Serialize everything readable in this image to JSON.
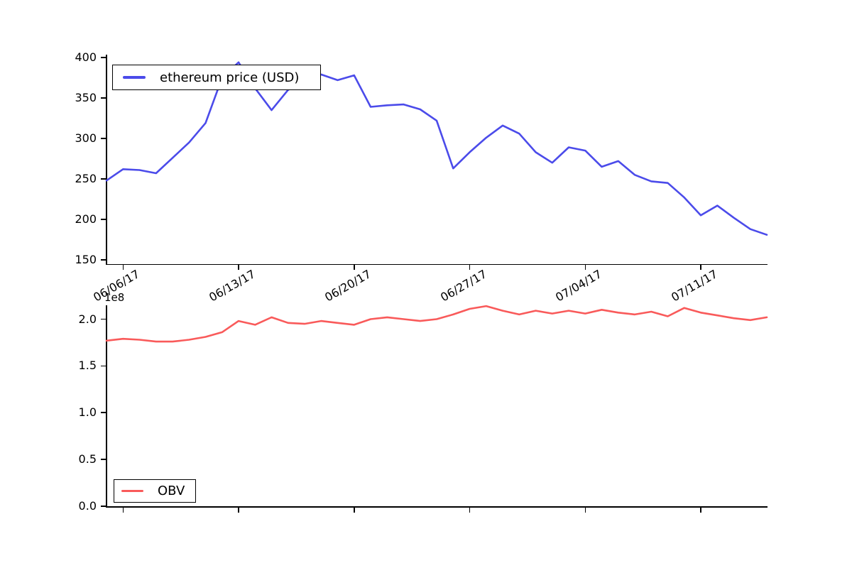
{
  "chart_data": [
    {
      "type": "line",
      "name": "ethereum price (USD)",
      "color": "#4b4bea",
      "legend_position": "upper left",
      "grid": false,
      "ylabel": "",
      "ylim": [
        150,
        400
      ],
      "yticks": [
        400,
        350,
        300,
        250,
        200,
        150
      ],
      "ytick_labels": [
        "400",
        "350",
        "300",
        "250",
        "200",
        "150"
      ],
      "xtick_labels": [
        "06/06/17",
        "06/13/17",
        "06/20/17",
        "06/27/17",
        "07/04/17",
        "07/11/17"
      ],
      "xtick_indices": [
        1,
        8,
        15,
        22,
        29,
        36
      ],
      "x": [
        "06/05/17",
        "06/06/17",
        "06/07/17",
        "06/08/17",
        "06/09/17",
        "06/10/17",
        "06/11/17",
        "06/12/17",
        "06/13/17",
        "06/14/17",
        "06/15/17",
        "06/16/17",
        "06/17/17",
        "06/18/17",
        "06/19/17",
        "06/20/17",
        "06/21/17",
        "06/22/17",
        "06/23/17",
        "06/24/17",
        "06/25/17",
        "06/26/17",
        "06/27/17",
        "06/28/17",
        "06/29/17",
        "06/30/17",
        "07/01/17",
        "07/02/17",
        "07/03/17",
        "07/04/17",
        "07/05/17",
        "07/06/17",
        "07/07/17",
        "07/08/17",
        "07/09/17",
        "07/10/17",
        "07/11/17",
        "07/12/17",
        "07/13/17",
        "07/14/17",
        "07/15/17"
      ],
      "values": [
        248,
        262,
        261,
        257,
        276,
        295,
        319,
        375,
        394,
        362,
        335,
        360,
        370,
        379,
        372,
        378,
        339,
        341,
        342,
        336,
        322,
        263,
        283,
        301,
        316,
        306,
        283,
        270,
        289,
        285,
        265,
        272,
        255,
        247,
        245,
        227,
        205,
        217,
        202,
        188,
        181
      ]
    },
    {
      "type": "line",
      "name": "OBV",
      "color": "#f95a5a",
      "legend_position": "lower left",
      "grid": false,
      "ylabel": "",
      "offset_text": "1e8",
      "value_scale": "1e8",
      "ylim": [
        0.0,
        2.15
      ],
      "yticks": [
        2.0,
        1.5,
        1.0,
        0.5,
        0.0
      ],
      "ytick_labels": [
        "2.0",
        "1.5",
        "1.0",
        "0.5",
        "0.0"
      ],
      "xtick_labels": [],
      "xtick_indices": [
        1,
        8,
        15,
        22,
        29,
        36
      ],
      "x": [
        "06/05/17",
        "06/06/17",
        "06/07/17",
        "06/08/17",
        "06/09/17",
        "06/10/17",
        "06/11/17",
        "06/12/17",
        "06/13/17",
        "06/14/17",
        "06/15/17",
        "06/16/17",
        "06/17/17",
        "06/18/17",
        "06/19/17",
        "06/20/17",
        "06/21/17",
        "06/22/17",
        "06/23/17",
        "06/24/17",
        "06/25/17",
        "06/26/17",
        "06/27/17",
        "06/28/17",
        "06/29/17",
        "06/30/17",
        "07/01/17",
        "07/02/17",
        "07/03/17",
        "07/04/17",
        "07/05/17",
        "07/06/17",
        "07/07/17",
        "07/08/17",
        "07/09/17",
        "07/10/17",
        "07/11/17",
        "07/12/17",
        "07/13/17",
        "07/14/17",
        "07/15/17"
      ],
      "values": [
        1.77,
        1.79,
        1.78,
        1.76,
        1.76,
        1.78,
        1.81,
        1.86,
        1.98,
        1.94,
        2.02,
        1.96,
        1.95,
        1.98,
        1.96,
        1.94,
        2.0,
        2.02,
        2.0,
        1.98,
        2.0,
        2.05,
        2.11,
        2.14,
        2.09,
        2.05,
        2.09,
        2.06,
        2.09,
        2.06,
        2.1,
        2.07,
        2.05,
        2.08,
        2.03,
        2.12,
        2.07,
        2.04,
        2.01,
        1.99,
        2.02
      ]
    }
  ]
}
